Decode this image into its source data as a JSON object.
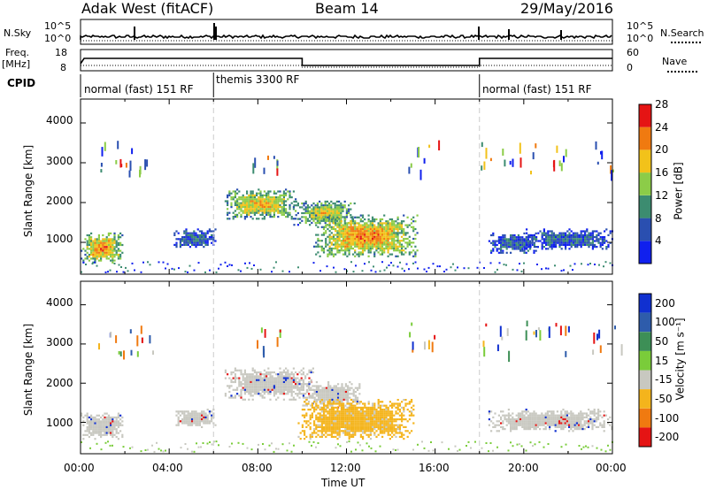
{
  "header": {
    "title_left": "Adak West (fitACF)",
    "title_center": "Beam 14",
    "title_right": "29/May/2016"
  },
  "top_panel": {
    "left_label_top": "N.Sky",
    "left_label_bottom": "",
    "left_tick_high": "10^5",
    "left_tick_low": "10^0",
    "right_tick_high": "10^5",
    "right_tick_low": "10^0",
    "right_label": "N.Search"
  },
  "freq_panel": {
    "left_label_line1": "Freq.",
    "left_label_line2": "[MHz]",
    "left_tick_high": "18",
    "left_tick_low": "8",
    "right_tick_high": "60",
    "right_tick_low": "0",
    "right_label": "Nave"
  },
  "cpid_panel": {
    "label": "CPID",
    "segments": [
      {
        "text": "normal (fast) 151 RF",
        "start_hour": 0
      },
      {
        "text": "themis 3300 RF",
        "start_hour": 6
      },
      {
        "text": "normal (fast) 151 RF",
        "start_hour": 18
      }
    ]
  },
  "time_axis": {
    "label": "Time UT",
    "ticks": [
      "00:00",
      "04:00",
      "08:00",
      "12:00",
      "16:00",
      "20:00",
      "00:00"
    ]
  },
  "chart_data": [
    {
      "type": "heatmap",
      "name_shown": "Power",
      "ylabel": "Slant Range [km]",
      "yticks": [
        "1000",
        "2000",
        "3000",
        "4000"
      ],
      "ylim": [
        200,
        4600
      ],
      "xlim_hours": [
        0,
        24
      ],
      "colorbar_label": "Power [dB]",
      "colorbar_ticks": [
        "4",
        "8",
        "12",
        "16",
        "20",
        "24",
        "28"
      ],
      "colorbar_colors": [
        "#1020ee",
        "#2a4fb0",
        "#3c8c70",
        "#8ccc48",
        "#f2c21a",
        "#f07a10",
        "#e51414"
      ],
      "regions": [
        {
          "t0": 0.0,
          "t1": 1.9,
          "r0": 500,
          "r1": 1250,
          "level": 0.75
        },
        {
          "t0": 4.2,
          "t1": 6.1,
          "r0": 900,
          "r1": 1350,
          "level": 0.2
        },
        {
          "t0": 6.5,
          "t1": 9.7,
          "r0": 1600,
          "r1": 2350,
          "level": 0.65
        },
        {
          "t0": 9.6,
          "t1": 12.4,
          "r0": 1450,
          "r1": 2050,
          "level": 0.55
        },
        {
          "t0": 10.5,
          "t1": 15.2,
          "r0": 650,
          "r1": 1700,
          "level": 0.75
        },
        {
          "t0": 18.4,
          "t1": 20.6,
          "r0": 750,
          "r1": 1250,
          "level": 0.2
        },
        {
          "t0": 20.0,
          "t1": 24.0,
          "r0": 850,
          "r1": 1350,
          "level": 0.2
        }
      ]
    },
    {
      "type": "heatmap",
      "name_shown": "Velocity",
      "ylabel": "Slant Range [km]",
      "yticks": [
        "1000",
        "2000",
        "3000",
        "4000"
      ],
      "ylim": [
        200,
        4600
      ],
      "xlim_hours": [
        0,
        24
      ],
      "colorbar_label": "Velocity [m s⁻¹]",
      "colorbar_ticks": [
        "200",
        "100",
        "50",
        "15",
        "-15",
        "-50",
        "-100",
        "-200"
      ],
      "colorbar_colors": [
        "#1030d0",
        "#2e5cab",
        "#3d8f56",
        "#7acc3a",
        "#c8c8c0",
        "#f4b41c",
        "#f07a10",
        "#e51414"
      ],
      "regions": [
        {
          "t0": 0.0,
          "t1": 1.9,
          "r0": 600,
          "r1": 1250,
          "level": 0.5
        },
        {
          "t0": 4.2,
          "t1": 6.1,
          "r0": 900,
          "r1": 1350,
          "level": 0.5
        },
        {
          "t0": 6.5,
          "t1": 10.5,
          "r0": 1600,
          "r1": 2400,
          "level": 0.5
        },
        {
          "t0": 10.0,
          "t1": 12.7,
          "r0": 1400,
          "r1": 2050,
          "level": 0.5
        },
        {
          "t0": 9.8,
          "t1": 15.0,
          "r0": 600,
          "r1": 1600,
          "level": 0.8
        },
        {
          "t0": 18.4,
          "t1": 24.0,
          "r0": 800,
          "r1": 1350,
          "level": 0.5
        }
      ]
    }
  ]
}
